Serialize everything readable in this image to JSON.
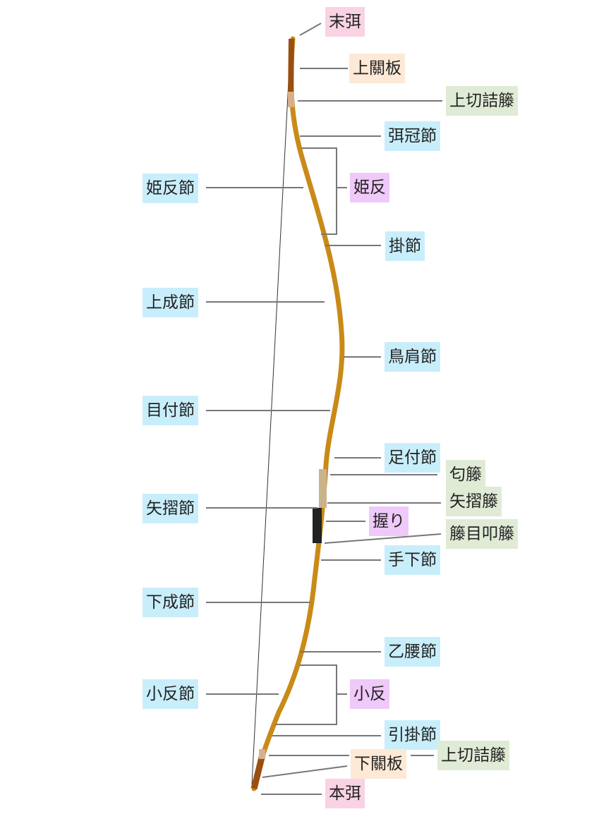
{
  "colors": {
    "pink": "#f9d3e3",
    "orange": "#fde9d6",
    "green": "#e0ebd6",
    "blue": "#c9eefb",
    "purple": "#efc9f9",
    "bow": "#c98a17",
    "leader": "#777777"
  },
  "labels": [
    {
      "text": "末弭",
      "color": "pink"
    },
    {
      "text": "上關板",
      "color": "orange"
    },
    {
      "text": "上切詰籐",
      "color": "green"
    },
    {
      "text": "弭冠節",
      "color": "blue"
    },
    {
      "text": "姫反節",
      "color": "blue"
    },
    {
      "text": "姫反",
      "color": "purple"
    },
    {
      "text": "掛節",
      "color": "blue"
    },
    {
      "text": "上成節",
      "color": "blue"
    },
    {
      "text": "鳥肩節",
      "color": "blue"
    },
    {
      "text": "目付節",
      "color": "blue"
    },
    {
      "text": "足付節",
      "color": "blue"
    },
    {
      "text": "匂籐",
      "color": "green"
    },
    {
      "text": "矢摺籐",
      "color": "green"
    },
    {
      "text": "矢摺節",
      "color": "blue"
    },
    {
      "text": "握り",
      "color": "purple"
    },
    {
      "text": "籐目叩籐",
      "color": "green"
    },
    {
      "text": "手下節",
      "color": "blue"
    },
    {
      "text": "下成節",
      "color": "blue"
    },
    {
      "text": "乙腰節",
      "color": "blue"
    },
    {
      "text": "小反節",
      "color": "blue"
    },
    {
      "text": "小反",
      "color": "purple"
    },
    {
      "text": "引掛節",
      "color": "blue"
    },
    {
      "text": "上切詰籐",
      "color": "green"
    },
    {
      "text": "下關板",
      "color": "orange"
    },
    {
      "text": "本弭",
      "color": "pink"
    }
  ]
}
